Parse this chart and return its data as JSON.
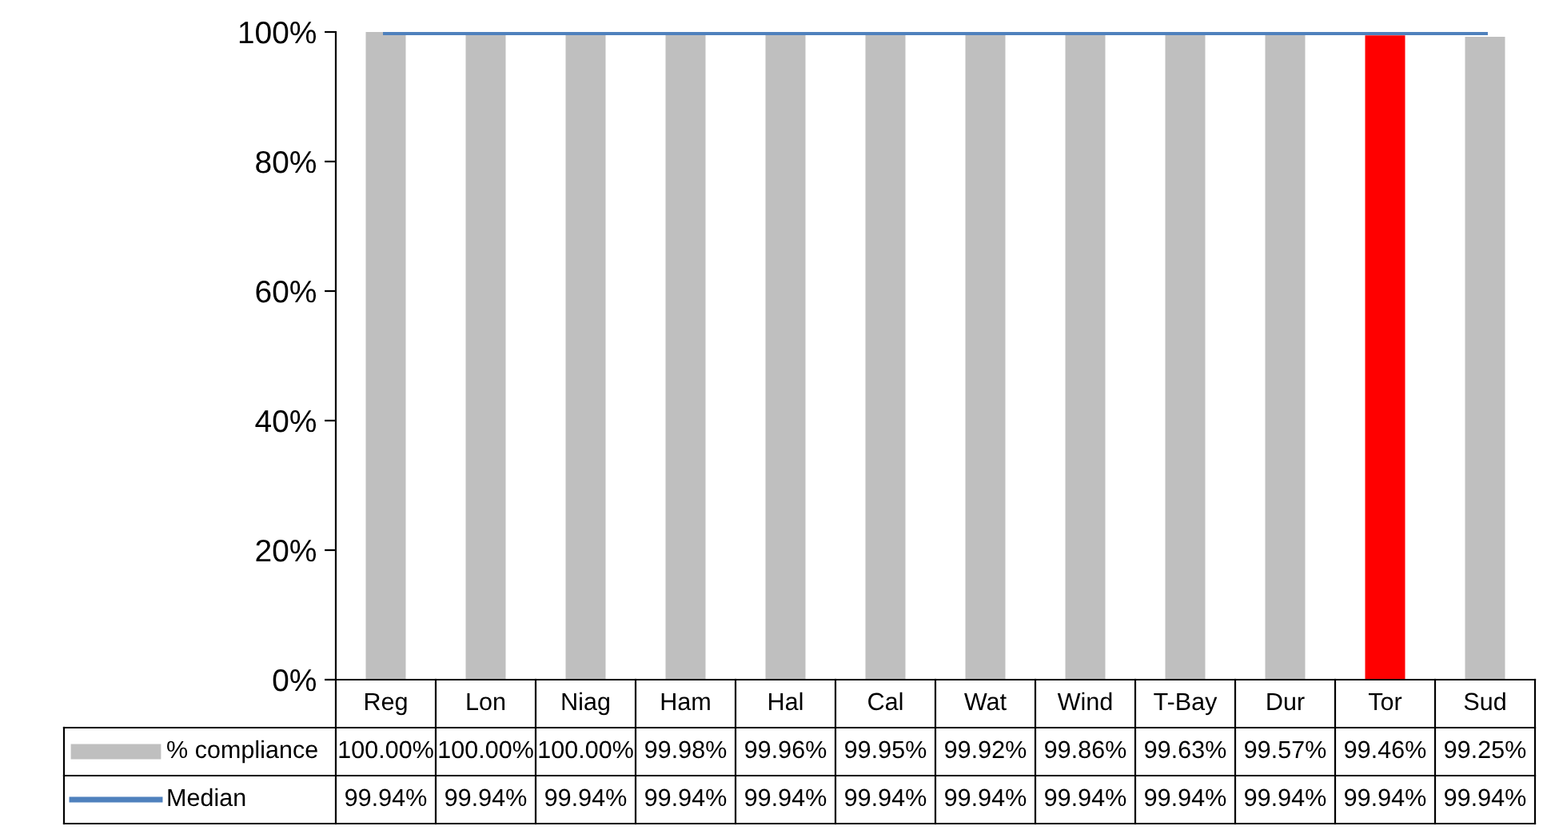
{
  "chart_data": {
    "type": "bar",
    "categories": [
      "Reg",
      "Lon",
      "Niag",
      "Ham",
      "Hal",
      "Cal",
      "Wat",
      "Wind",
      "T-Bay",
      "Dur",
      "Tor",
      "Sud"
    ],
    "series": [
      {
        "name": "% compliance",
        "value_labels": [
          "100.00%",
          "100.00%",
          "100.00%",
          "99.98%",
          "99.96%",
          "99.95%",
          "99.92%",
          "99.86%",
          "99.63%",
          "99.57%",
          "99.46%",
          "99.25%"
        ],
        "colors": [
          "#bfbfbf",
          "#bfbfbf",
          "#bfbfbf",
          "#bfbfbf",
          "#bfbfbf",
          "#bfbfbf",
          "#bfbfbf",
          "#bfbfbf",
          "#bfbfbf",
          "#bfbfbf",
          "#ff0000",
          "#bfbfbf"
        ],
        "values": [
          100.0,
          100.0,
          100.0,
          99.98,
          99.96,
          99.95,
          99.92,
          99.86,
          99.63,
          99.57,
          99.46,
          99.25
        ]
      },
      {
        "name": "Median",
        "type": "line",
        "color": "#4f81bd",
        "value_labels": [
          "99.94%",
          "99.94%",
          "99.94%",
          "99.94%",
          "99.94%",
          "99.94%",
          "99.94%",
          "99.94%",
          "99.94%",
          "99.94%",
          "99.94%",
          "99.94%"
        ],
        "values": [
          99.94,
          99.94,
          99.94,
          99.94,
          99.94,
          99.94,
          99.94,
          99.94,
          99.94,
          99.94,
          99.94,
          99.94
        ]
      }
    ],
    "ylim": [
      0,
      100
    ],
    "yticks": [
      {
        "value": 0,
        "label": "0%"
      },
      {
        "value": 20,
        "label": "20%"
      },
      {
        "value": 40,
        "label": "40%"
      },
      {
        "value": 60,
        "label": "60%"
      },
      {
        "value": 80,
        "label": "80%"
      },
      {
        "value": 100,
        "label": "100%"
      }
    ],
    "legend": "bottom left",
    "grid": false
  }
}
